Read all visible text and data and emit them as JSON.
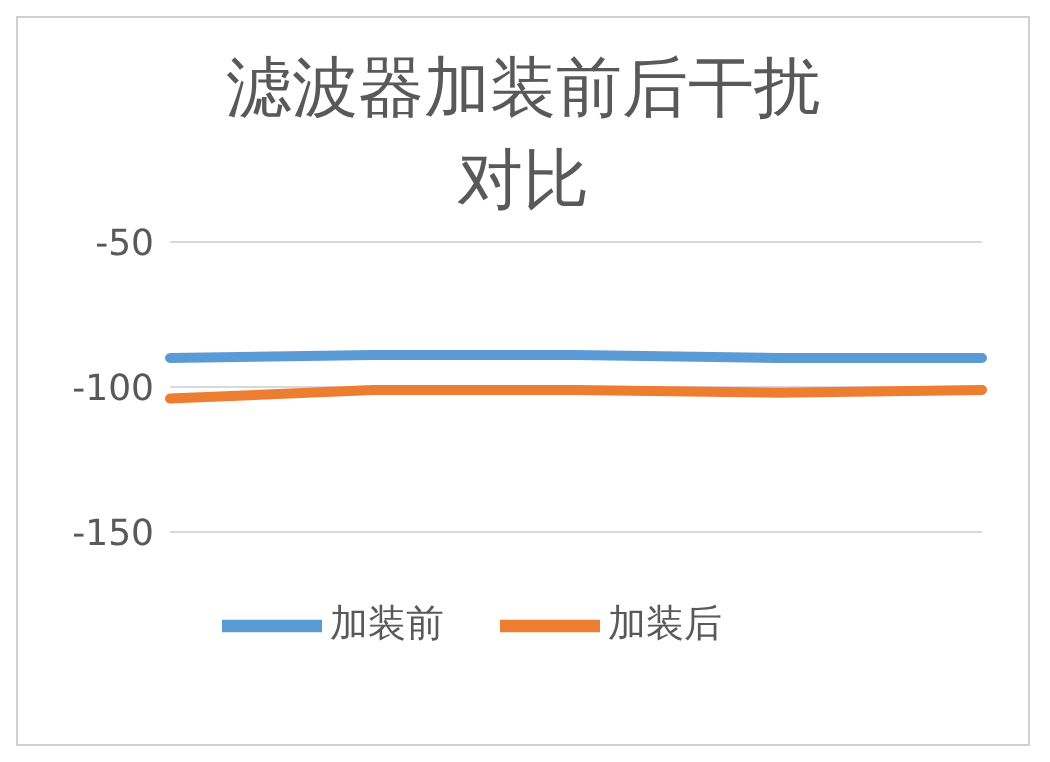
{
  "chart_data": {
    "type": "line",
    "title": "滤波器加装前后干扰对比",
    "categories": [
      null,
      null,
      null,
      null,
      null
    ],
    "series": [
      {
        "name": "加装前",
        "color": "#5b9bd5",
        "values": [
          -90,
          -89,
          -89,
          -90,
          -90
        ]
      },
      {
        "name": "加装后",
        "color": "#ed7d31",
        "values": [
          -104,
          -101,
          -101,
          -102,
          -101
        ]
      }
    ],
    "ylim": [
      -150,
      -50
    ],
    "yticks": [
      -50,
      -100,
      -150
    ],
    "grid": "y",
    "legend": "bottom",
    "marker": "none",
    "line_style": "solid"
  }
}
